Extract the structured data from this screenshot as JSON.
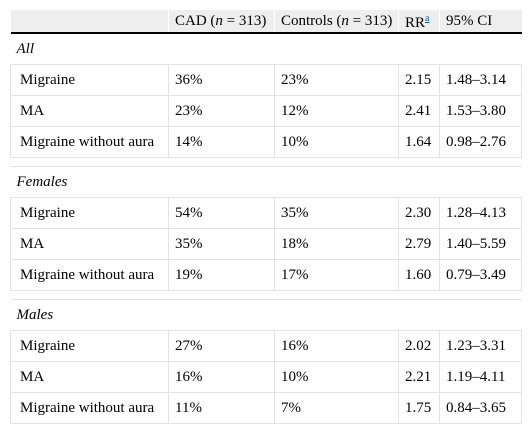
{
  "header": {
    "col_label": "",
    "cad_pre": "CAD (",
    "cad_n": "n",
    "cad_post": " = 313)",
    "controls_pre": "Controls (",
    "controls_n": "n",
    "controls_post": " = 313)",
    "rr": "RR",
    "rr_sup": "a",
    "ci": "95% CI"
  },
  "sections": [
    {
      "title": "All",
      "rows": [
        {
          "label": "Migraine",
          "cad": "36%",
          "controls": "23%",
          "rr": "2.15",
          "ci": "1.48–3.14"
        },
        {
          "label": "MA",
          "cad": "23%",
          "controls": "12%",
          "rr": "2.41",
          "ci": "1.53–3.80"
        },
        {
          "label": "Migraine without aura",
          "cad": "14%",
          "controls": "10%",
          "rr": "1.64",
          "ci": "0.98–2.76"
        }
      ]
    },
    {
      "title": "Females",
      "rows": [
        {
          "label": "Migraine",
          "cad": "54%",
          "controls": "35%",
          "rr": "2.30",
          "ci": "1.28–4.13"
        },
        {
          "label": "MA",
          "cad": "35%",
          "controls": "18%",
          "rr": "2.79",
          "ci": "1.40–5.59"
        },
        {
          "label": "Migraine without aura",
          "cad": "19%",
          "controls": "17%",
          "rr": "1.60",
          "ci": "0.79–3.49"
        }
      ]
    },
    {
      "title": "Males",
      "rows": [
        {
          "label": "Migraine",
          "cad": "27%",
          "controls": "16%",
          "rr": "2.02",
          "ci": "1.23–3.31"
        },
        {
          "label": "MA",
          "cad": "16%",
          "controls": "10%",
          "rr": "2.21",
          "ci": "1.19–4.11"
        },
        {
          "label": "Migraine without aura",
          "cad": "11%",
          "controls": "7%",
          "rr": "1.75",
          "ci": "0.84–3.65"
        }
      ]
    }
  ]
}
